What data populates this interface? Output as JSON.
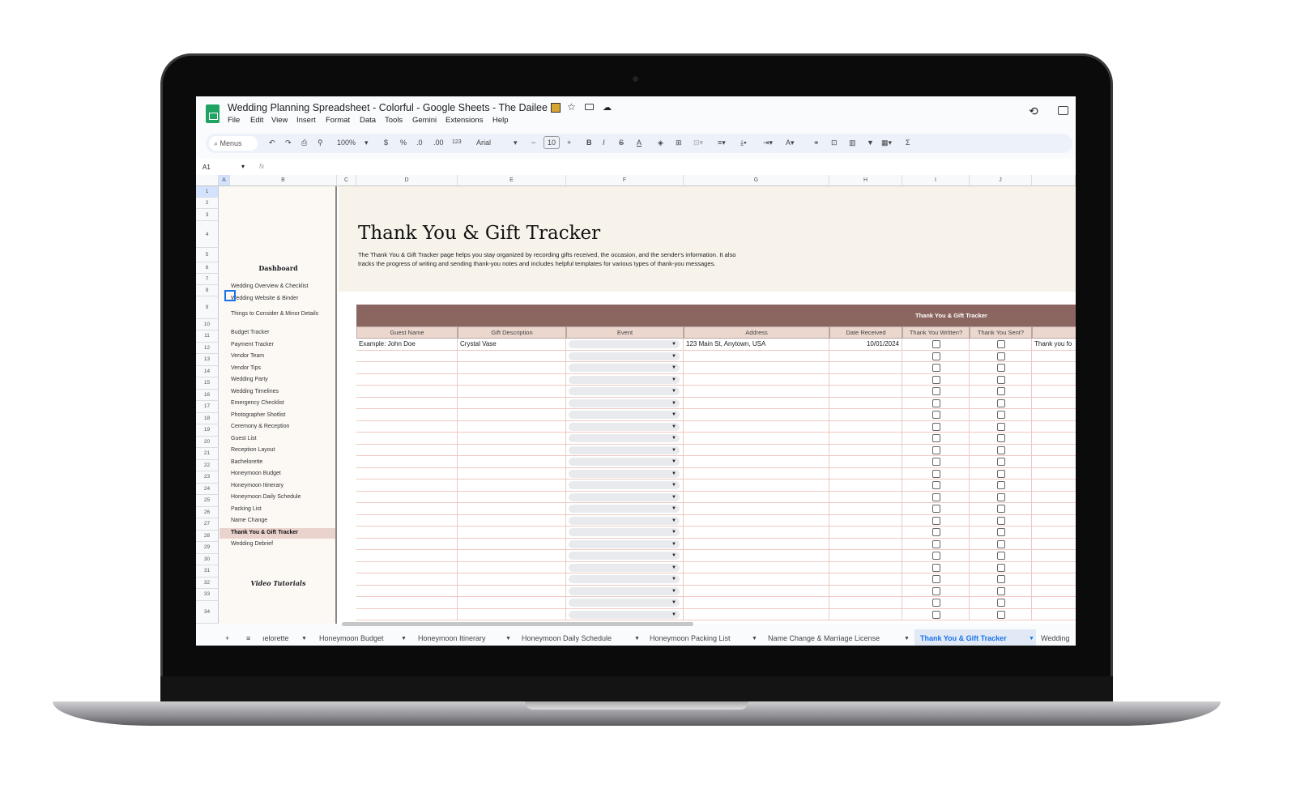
{
  "window": {
    "title": "Wedding Planning Spreadsheet - Colorful - Google Sheets - The Dailee"
  },
  "menu": [
    "File",
    "Edit",
    "View",
    "Insert",
    "Format",
    "Data",
    "Tools",
    "Gemini",
    "Extensions",
    "Help"
  ],
  "toolbar": {
    "search": "Menus",
    "zoom": "100%",
    "currency": "$",
    "percent": "%",
    "dec_dec": ".0",
    "inc_dec": ".00",
    "format_num": "123",
    "font": "Arial",
    "font_size": "10",
    "bold": "B",
    "italic": "I",
    "strike": "S",
    "text_color": "A",
    "sum": "Σ"
  },
  "formula_bar": {
    "cell_ref": "A1",
    "fx": "fx"
  },
  "columns": [
    "A",
    "B",
    "C",
    "D",
    "E",
    "F",
    "G",
    "H",
    "I",
    "J"
  ],
  "row_numbers": [
    "1",
    "2",
    "3",
    "4",
    "5",
    "6",
    "7",
    "8",
    "9",
    "10",
    "11",
    "12",
    "13",
    "14",
    "15",
    "16",
    "17",
    "18",
    "19",
    "20",
    "21",
    "22",
    "23",
    "24",
    "25",
    "26",
    "27",
    "28",
    "29",
    "30",
    "31",
    "32",
    "33",
    "34"
  ],
  "sidebar": {
    "heading": "Dashboard",
    "items": [
      "Wedding Overview & Checklist",
      "Wedding Website & Binder",
      "Things to Consider & Minor Details",
      "Budget Tracker",
      "Payment Tracker",
      "Vendor Team",
      "Vendor Tips",
      "Wedding Party",
      "Wedding Timelines",
      "Emergency Checklist",
      "Photographer Shotlist",
      "Ceremony & Reception",
      "Guest List",
      "Reception Layout",
      "Bachelorette",
      "Honeymoon Budget",
      "Honeymoon Itinerary",
      "Honeymoon Daily Schedule",
      "Packing List",
      "Name Change",
      "Thank You & Gift Tracker",
      "Wedding Debrief"
    ],
    "active": "Thank You & Gift Tracker",
    "footer": "Video Tutorials"
  },
  "page": {
    "title": "Thank You & Gift Tracker",
    "desc1": "The Thank You & Gift Tracker page helps you stay organized by recording gifts received, the occasion, and the sender's information. It also",
    "desc2": "tracks the progress of writing and sending thank-you notes and includes helpful templates for various types of thank-you messages."
  },
  "table": {
    "banner": "Thank You & Gift Tracker",
    "headers": [
      "Guest Name",
      "Gift Description",
      "Event",
      "Address",
      "Date Received",
      "Thank You Written?",
      "Thank You Sent?",
      ""
    ],
    "example": {
      "guest": "Example: John Doe",
      "gift": "Crystal Vase",
      "event": "",
      "address": "123 Main St, Anytown, USA",
      "date": "10/01/2024",
      "written": false,
      "sent": false,
      "message": "Thank you fo"
    },
    "empty_rows": 23
  },
  "tabs": {
    "items": [
      "ıelorette",
      "Honeymoon Budget",
      "Honeymoon Itinerary",
      "Honeymoon Daily Schedule",
      "Honeymoon Packing List",
      "Name Change & Marriage License",
      "Thank You & Gift Tracker",
      "Wedding"
    ],
    "active": "Thank You & Gift Tracker"
  },
  "colors": {
    "accent": "#8b6660",
    "header": "#ecd7cf",
    "active_tab": "#1a73e8",
    "sheets_green": "#1ea362"
  }
}
